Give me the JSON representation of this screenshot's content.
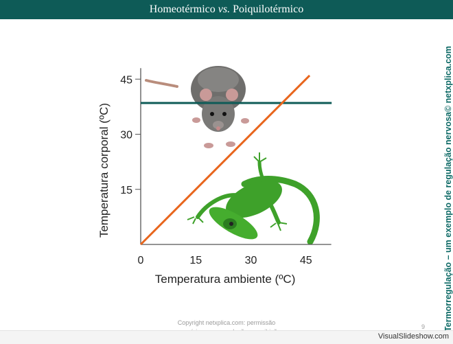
{
  "slide": {
    "title_main": "Homeotérmico",
    "title_vs": "vs.",
    "title_end": "Poiquilotérmico",
    "side_text": "Termorregulação – um exemplo de regulação nervosa© netxplica.com",
    "copyright_line1": "Copyright netxplica.com: permissão",
    "copyright_line2": "necessária para reprodução ou exibição.",
    "page_number": "9",
    "watermark": "VisualSlideshow.com"
  },
  "chart_data": {
    "type": "line",
    "xlabel": "Temperatura ambiente (ºC)",
    "ylabel": "Temperatura corporal (ºC)",
    "xlim": [
      0,
      52
    ],
    "ylim": [
      0,
      48
    ],
    "x_ticks": [
      0,
      15,
      30,
      45
    ],
    "y_ticks": [
      15,
      30,
      45
    ],
    "x_tick_labels": [
      "0",
      "15",
      "30",
      "45"
    ],
    "y_tick_labels": [
      "15",
      "30",
      "45"
    ],
    "series": [
      {
        "id": "homeothermic",
        "color": "#0e5b57",
        "x": [
          0,
          52
        ],
        "y": [
          38.5,
          38.5
        ]
      },
      {
        "id": "poikilothermic",
        "color": "#e8651c",
        "x": [
          0,
          46
        ],
        "y": [
          0,
          46
        ]
      }
    ],
    "images": [
      {
        "icon": "rat-icon"
      },
      {
        "icon": "lizard-icon"
      }
    ],
    "grid": false
  }
}
